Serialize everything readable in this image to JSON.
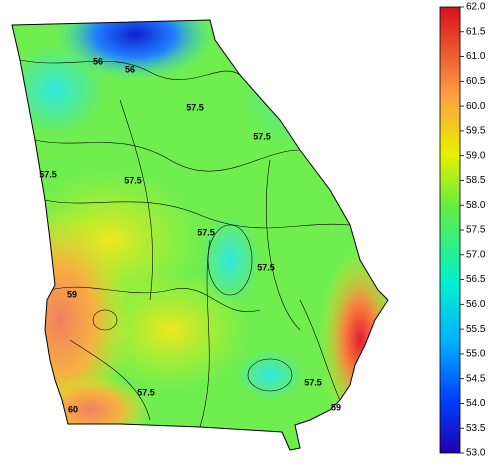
{
  "colorbar": {
    "lim": [
      53,
      62
    ],
    "ticks": [
      {
        "value": 62,
        "label": "62.0"
      },
      {
        "value": 61.5,
        "label": "61.5"
      },
      {
        "value": 61,
        "label": "61.0"
      },
      {
        "value": 60.5,
        "label": "60.5"
      },
      {
        "value": 60,
        "label": "60.0"
      },
      {
        "value": 59.5,
        "label": "59.5"
      },
      {
        "value": 59,
        "label": "59.0"
      },
      {
        "value": 58.5,
        "label": "58.5"
      },
      {
        "value": 58,
        "label": "58.0"
      },
      {
        "value": 57.5,
        "label": "57.5"
      },
      {
        "value": 57,
        "label": "57.0"
      },
      {
        "value": 56.5,
        "label": "56.5"
      },
      {
        "value": 56,
        "label": "56.0"
      },
      {
        "value": 55.5,
        "label": "55.5"
      },
      {
        "value": 55,
        "label": "55.0"
      },
      {
        "value": 54.5,
        "label": "54.5"
      },
      {
        "value": 54,
        "label": "54.0"
      },
      {
        "value": 53.5,
        "label": "53.5"
      },
      {
        "value": 53,
        "label": "53.0"
      }
    ]
  },
  "contour_labels": [
    "56",
    "56",
    "57.5",
    "57.5",
    "57.5",
    "57.5",
    "57.5",
    "57.5",
    "59",
    "57.5",
    "60",
    "57.5",
    "59"
  ]
}
